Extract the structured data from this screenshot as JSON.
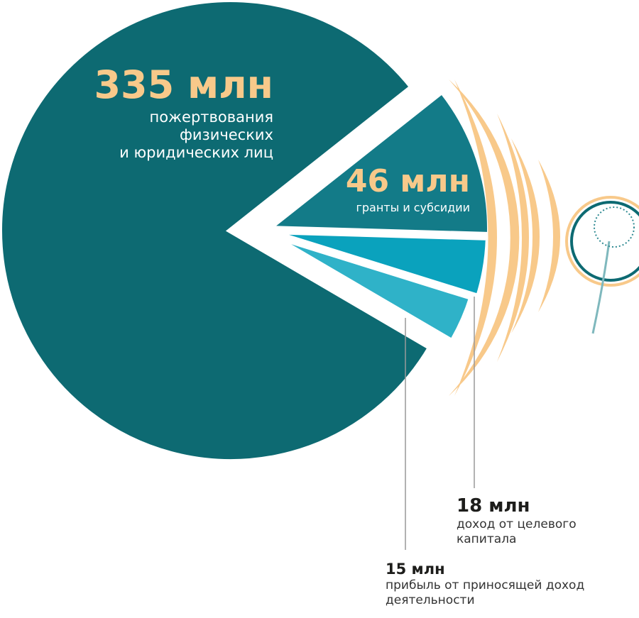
{
  "chart_data": {
    "type": "pie",
    "categories": [
      "пожертвования\nфизических\nи юридических лиц",
      "гранты и субсидии",
      "доход от целевого\nкапитала",
      "прибыль от приносящей доход\nдеятельности"
    ],
    "values": [
      335,
      46,
      18,
      15
    ],
    "value_labels": [
      "335 млн",
      "46 млн",
      "18 млн",
      "15 млн"
    ],
    "colors": [
      "#0d6a72",
      "#137b88",
      "#0aa2bd",
      "#2fb2c8"
    ]
  }
}
